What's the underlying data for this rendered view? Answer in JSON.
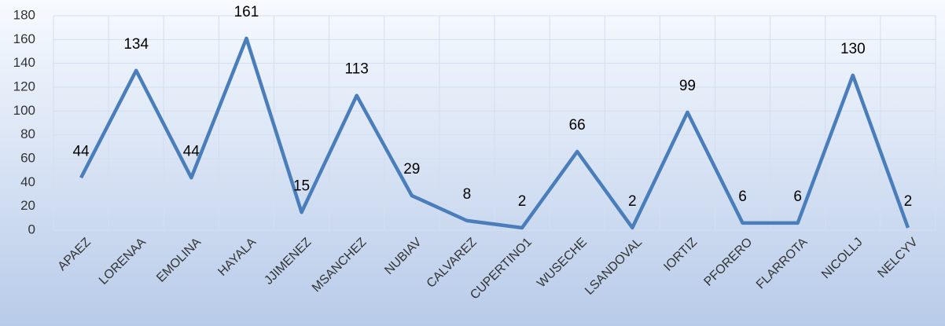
{
  "chart_data": {
    "type": "line",
    "categories": [
      "APAEZ",
      "LORENAA",
      "EMOLINA",
      "HAYALA",
      "JJIMENEZ",
      "MSANCHEZ",
      "NUBIAV",
      "CALVAREZ",
      "CUPERTINO1",
      "WUSECHE",
      "LSANDOVAL",
      "IORTIZ",
      "PFORERO",
      "FLARROTA",
      "NICOLLJ",
      "NELCYV"
    ],
    "values": [
      44,
      134,
      44,
      161,
      15,
      113,
      29,
      8,
      2,
      66,
      2,
      99,
      6,
      6,
      130,
      2
    ],
    "color": "#4a7ebb",
    "ylim": [
      0,
      180
    ],
    "yticks": [
      0,
      20,
      40,
      60,
      80,
      100,
      120,
      140,
      160,
      180
    ],
    "grid": true
  }
}
